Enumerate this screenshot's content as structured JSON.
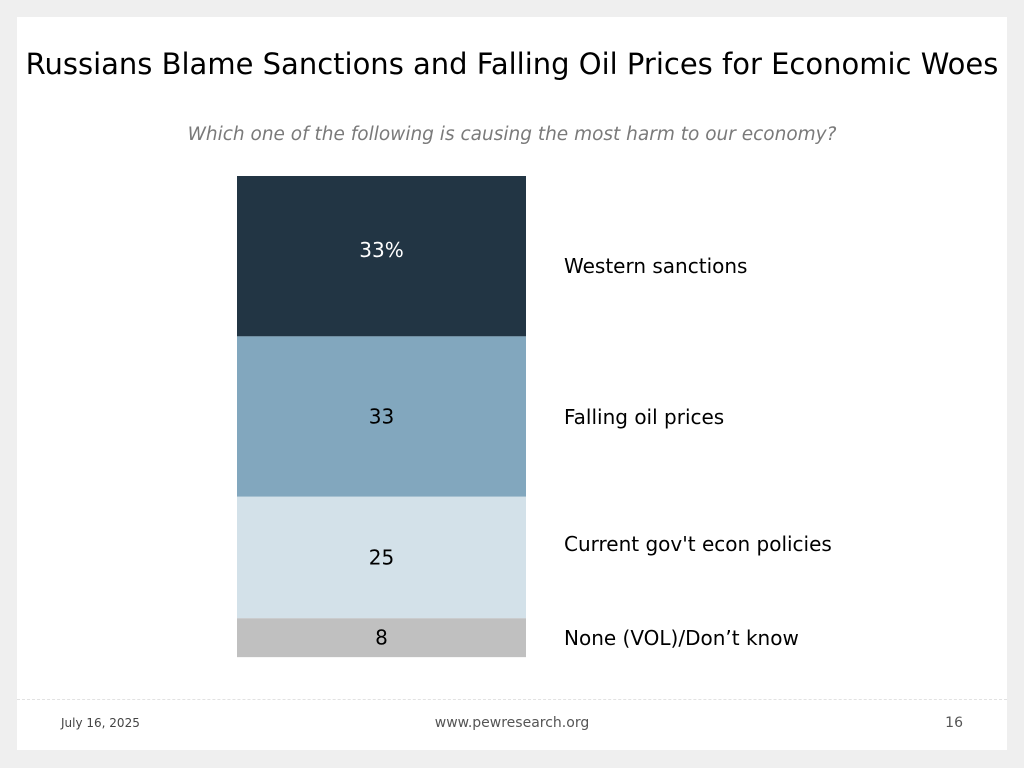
{
  "title": "Russians Blame Sanctions and Falling Oil Prices for Economic Woes",
  "subtitle": "Which one of the following is causing the most harm to our economy?",
  "chart_data": {
    "type": "bar",
    "stacked": true,
    "categories": [
      "Western sanctions",
      "Falling oil prices",
      "Current gov't econ policies",
      "None (VOL)/Don’t know"
    ],
    "values": [
      33,
      33,
      25,
      8
    ],
    "data_labels": [
      "33%",
      "33",
      "25",
      "8"
    ],
    "colors": [
      "#223544",
      "#82a7be",
      "#d3e1e9",
      "#c0c0c0"
    ],
    "label_colors": [
      "#ffffff",
      "#000000",
      "#000000",
      "#000000"
    ],
    "unit": "%"
  },
  "footer": {
    "date": "July 16, 2025",
    "url": "www.pewresearch.org",
    "page": "16"
  }
}
